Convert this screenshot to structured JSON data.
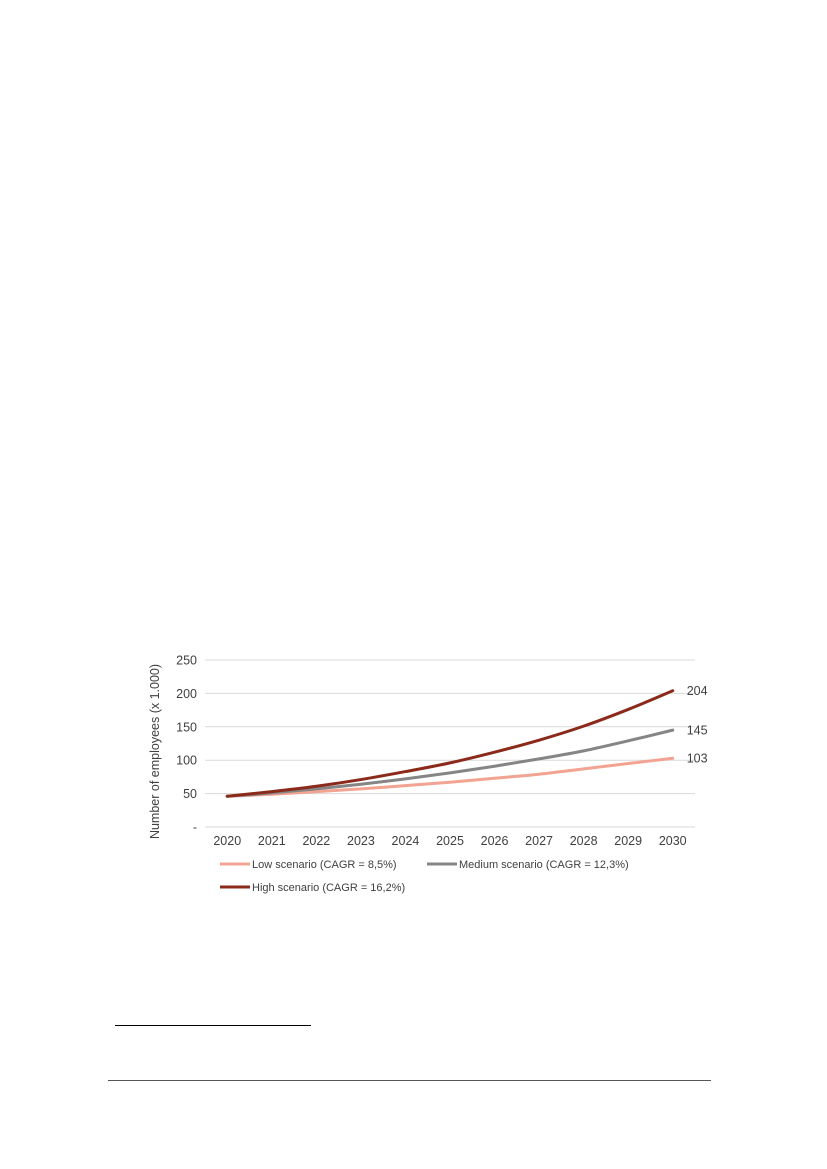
{
  "chart_data": {
    "type": "line",
    "categories": [
      "2020",
      "2021",
      "2022",
      "2023",
      "2024",
      "2025",
      "2026",
      "2027",
      "2028",
      "2029",
      "2030"
    ],
    "ylabel": "Number of employees (x 1.000)",
    "ylim": [
      0,
      250
    ],
    "yticks": [
      0,
      50,
      100,
      150,
      200,
      250
    ],
    "ytick_labels": [
      "-",
      "50",
      "100",
      "150",
      "200",
      "250"
    ],
    "grid": true,
    "legend_position": "bottom",
    "series": [
      {
        "name": "Low scenario (CAGR = 8,5%)",
        "color": "#f2a391",
        "values": [
          46,
          49,
          53,
          57,
          62,
          67,
          73,
          79,
          87,
          95,
          103
        ],
        "end_label": "103"
      },
      {
        "name": "Medium scenario (CAGR = 12,3%)",
        "color": "#858585",
        "values": [
          46,
          51,
          57,
          64,
          72,
          81,
          91,
          102,
          114,
          129,
          145
        ],
        "end_label": "145"
      },
      {
        "name": "High scenario (CAGR = 16,2%)",
        "color": "#8b2a1a",
        "values": [
          46,
          53,
          61,
          71,
          83,
          96,
          112,
          130,
          151,
          176,
          204
        ],
        "end_label": "204"
      }
    ]
  }
}
